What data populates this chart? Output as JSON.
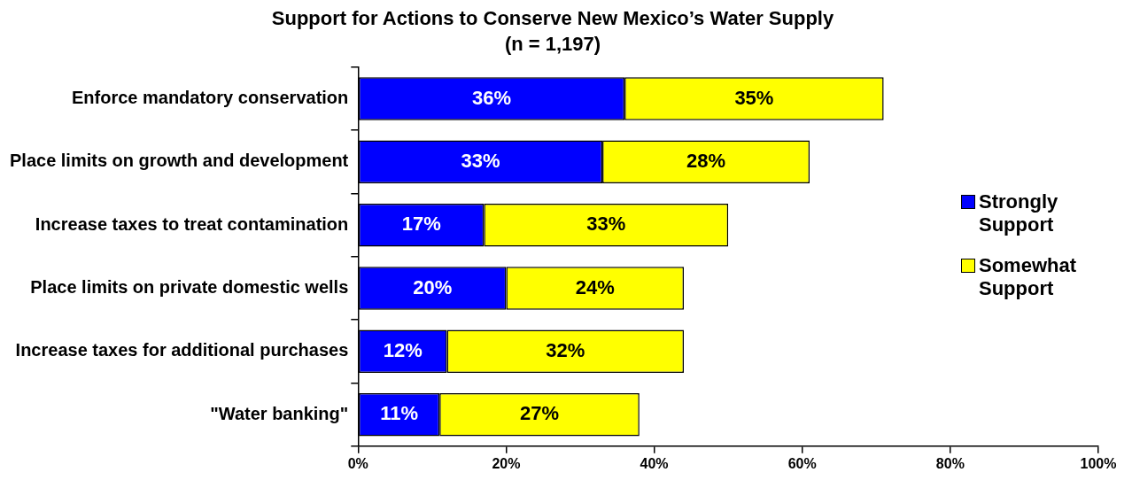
{
  "chart_data": {
    "type": "bar",
    "orientation": "horizontal",
    "stacked": true,
    "title": "Support for Actions to Conserve New Mexico’s Water Supply",
    "subtitle": "(n = 1,197)",
    "categories": [
      "Enforce mandatory conservation",
      "Place limits on growth and development",
      "Increase taxes to treat contamination",
      "Place limits on private domestic wells",
      "Increase taxes for additional purchases",
      "\"Water banking\""
    ],
    "series": [
      {
        "name": "Strongly Support",
        "color": "#0000ff",
        "values": [
          36,
          33,
          17,
          20,
          12,
          11
        ],
        "value_labels": [
          "36%",
          "33%",
          "17%",
          "20%",
          "12%",
          "11%"
        ]
      },
      {
        "name": "Somewhat Support",
        "color": "#ffff00",
        "values": [
          35,
          28,
          33,
          24,
          32,
          27
        ],
        "value_labels": [
          "35%",
          "28%",
          "33%",
          "24%",
          "32%",
          "27%"
        ]
      }
    ],
    "xlim": [
      0,
      100
    ],
    "xticks": [
      {
        "value": 0,
        "label": "0%"
      },
      {
        "value": 20,
        "label": "20%"
      },
      {
        "value": 40,
        "label": "40%"
      },
      {
        "value": 60,
        "label": "60%"
      },
      {
        "value": 80,
        "label": "80%"
      },
      {
        "value": 100,
        "label": "100%"
      }
    ],
    "grid": false,
    "legend": "right"
  }
}
